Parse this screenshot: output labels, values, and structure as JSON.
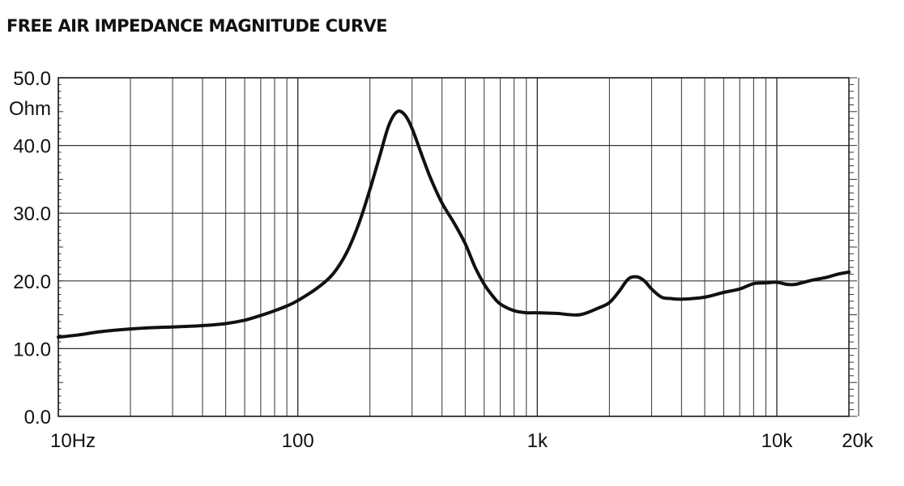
{
  "chart_data": {
    "type": "line",
    "title": "FREE AIR IMPEDANCE MAGNITUDE CURVE",
    "xscale": "log",
    "xlim": [
      10,
      20000
    ],
    "ylim": [
      0,
      50
    ],
    "ylabel": "Ohm",
    "grid": true,
    "yticks": [
      {
        "value": 0,
        "label": "0.0"
      },
      {
        "value": 10,
        "label": "10.0"
      },
      {
        "value": 20,
        "label": "20.0"
      },
      {
        "value": 30,
        "label": "30.0"
      },
      {
        "value": 40,
        "label": "40.0"
      },
      {
        "value": 50,
        "label": "50.0"
      }
    ],
    "xticks": [
      {
        "value": 10,
        "label": "10Hz"
      },
      {
        "value": 100,
        "label": "100"
      },
      {
        "value": 1000,
        "label": "1k"
      },
      {
        "value": 10000,
        "label": "10k"
      },
      {
        "value": 20000,
        "label": "20k"
      }
    ],
    "series": [
      {
        "color": "#111111",
        "x": [
          10,
          12,
          15,
          20,
          25,
          30,
          40,
          50,
          60,
          70,
          80,
          90,
          100,
          120,
          140,
          160,
          180,
          200,
          220,
          240,
          260,
          280,
          300,
          330,
          360,
          400,
          450,
          500,
          550,
          600,
          650,
          700,
          800,
          900,
          1000,
          1200,
          1500,
          1800,
          2000,
          2200,
          2400,
          2600,
          2800,
          3000,
          3300,
          3600,
          4000,
          5000,
          6000,
          7000,
          8000,
          9000,
          10000,
          11000,
          12000,
          14000,
          16000,
          18000,
          20000
        ],
        "y": [
          11.7,
          12.0,
          12.5,
          12.9,
          13.1,
          13.2,
          13.4,
          13.7,
          14.2,
          14.9,
          15.6,
          16.3,
          17.1,
          18.9,
          21.0,
          24.2,
          28.5,
          33.5,
          38.5,
          43.0,
          45.0,
          44.5,
          42.5,
          38.5,
          35.0,
          31.5,
          28.5,
          25.5,
          22.0,
          19.5,
          17.8,
          16.6,
          15.6,
          15.3,
          15.3,
          15.2,
          15.0,
          16.0,
          16.8,
          18.5,
          20.3,
          20.6,
          20.0,
          18.8,
          17.6,
          17.4,
          17.3,
          17.6,
          18.3,
          18.8,
          19.6,
          19.7,
          19.8,
          19.5,
          19.5,
          20.1,
          20.5,
          21.0,
          21.3
        ]
      }
    ]
  }
}
